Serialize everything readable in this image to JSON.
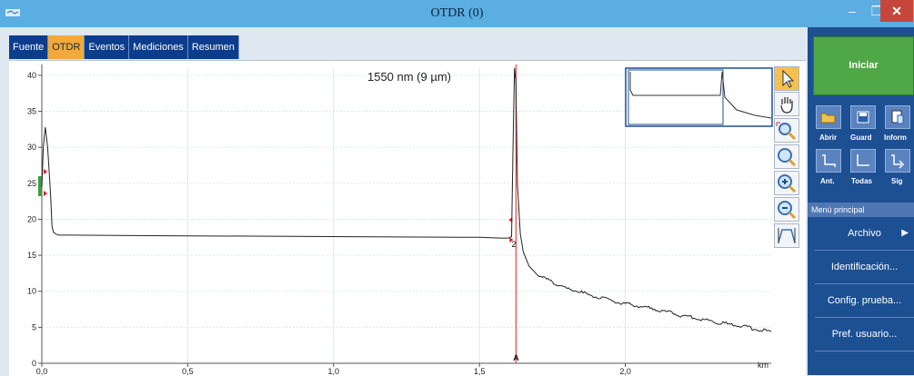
{
  "window": {
    "title": "OTDR (0)",
    "min": "–",
    "max": "❐",
    "close": "✕"
  },
  "tabs": [
    "Fuente",
    "OTDR",
    "Eventos",
    "Mediciones",
    "Resumen"
  ],
  "active_tab": "OTDR",
  "chart_data": {
    "type": "line",
    "title": "1550 nm (9 µm)",
    "xlabel": "km",
    "ylabel": "",
    "xlim": [
      0,
      2.5
    ],
    "ylim": [
      0,
      41
    ],
    "x_ticks": [
      "0,0",
      "0,5",
      "1,0",
      "1,5",
      "2,0"
    ],
    "x_tick_values": [
      0,
      0.5,
      1.0,
      1.5,
      2.0
    ],
    "y_ticks": [
      "0",
      "5",
      "10",
      "15",
      "20",
      "25",
      "30",
      "35",
      "40"
    ],
    "y_tick_values": [
      0,
      5,
      10,
      15,
      20,
      25,
      30,
      35,
      40
    ],
    "grid": true,
    "series": [
      {
        "x": [
          0,
          0.005,
          0.012,
          0.02,
          0.03,
          0.035,
          0.04,
          0.05,
          0.06,
          0.1,
          0.5,
          1.0,
          1.5,
          1.57,
          1.6,
          1.61,
          1.615,
          1.62,
          1.625,
          1.63,
          1.64,
          1.65,
          1.67,
          1.7,
          1.8,
          1.9,
          2.0,
          2.1,
          2.2,
          2.3,
          2.4,
          2.5
        ],
        "y": [
          24.5,
          30,
          32.8,
          30,
          23.5,
          19,
          18.2,
          17.9,
          17.8,
          17.8,
          17.7,
          17.6,
          17.5,
          17.4,
          17.4,
          17.6,
          30,
          41,
          39,
          25,
          18,
          15.5,
          13.5,
          12.2,
          10.4,
          9.2,
          8.3,
          7.5,
          6.6,
          5.8,
          5.1,
          4.4
        ]
      }
    ],
    "markers": [
      {
        "label": "A",
        "x": 1.625
      },
      {
        "label": "2",
        "x": 1.635
      }
    ]
  },
  "toolbox": [
    "cursor-icon",
    "pan-hand-icon",
    "zoom-area-icon",
    "zoom-fit-icon",
    "zoom-in-icon",
    "zoom-out-icon",
    "full-view-icon"
  ],
  "sidebar": {
    "start_label": "Iniciar",
    "file_buttons": [
      {
        "label": "Abrir",
        "icon": "folder-open-icon"
      },
      {
        "label": "Guard",
        "icon": "save-icon"
      },
      {
        "label": "Inform",
        "icon": "report-icon"
      }
    ],
    "nav_buttons": [
      {
        "label": "Ant.",
        "icon": "previous-trace-icon"
      },
      {
        "label": "Todas",
        "icon": "all-traces-icon"
      },
      {
        "label": "Sig",
        "icon": "next-trace-icon"
      }
    ],
    "menu_header": "Menú principal",
    "menu_items": [
      "Archivo",
      "Identificación...",
      "Config. prueba...",
      "Pref. usuario..."
    ],
    "menu_arrow": "▶"
  }
}
